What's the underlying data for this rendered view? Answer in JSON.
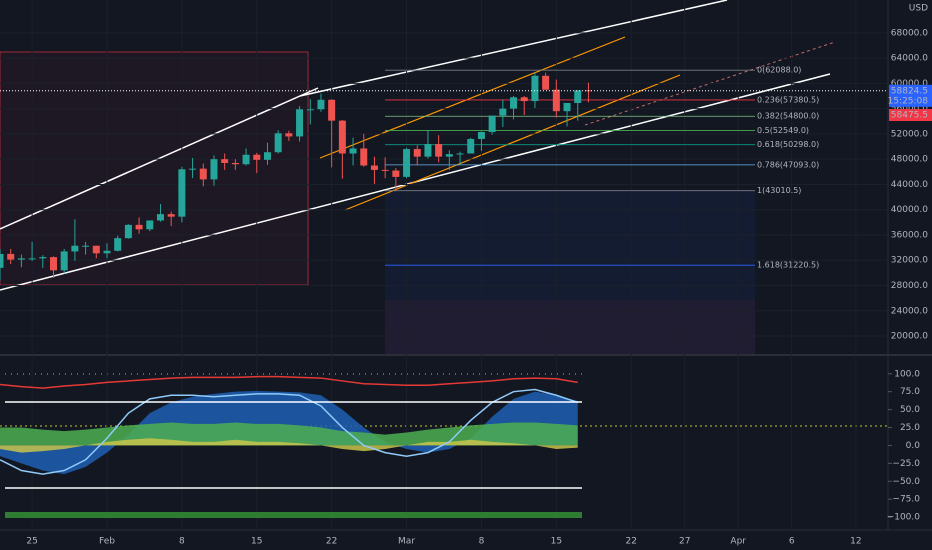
{
  "chart_data": [
    {
      "type": "candlestick",
      "currency": "USD",
      "x": [
        "01-22",
        "01-23",
        "01-24",
        "01-25",
        "01-26",
        "01-27",
        "01-28",
        "01-29",
        "01-30",
        "01-31",
        "02-01",
        "02-02",
        "02-03",
        "02-04",
        "02-05",
        "02-06",
        "02-07",
        "02-08",
        "02-09",
        "02-10",
        "02-11",
        "02-12",
        "02-13",
        "02-14",
        "02-15",
        "02-16",
        "02-17",
        "02-18",
        "02-19",
        "02-20",
        "02-21",
        "02-22",
        "02-23",
        "02-24",
        "02-25",
        "02-26",
        "02-27",
        "02-28",
        "03-01",
        "03-02",
        "03-03",
        "03-04",
        "03-05",
        "03-06",
        "03-07",
        "03-08",
        "03-09",
        "03-10",
        "03-11",
        "03-12",
        "03-13",
        "03-14",
        "03-15",
        "03-16",
        "03-17",
        "03-18"
      ],
      "open": [
        30800,
        33000,
        32100,
        32300,
        32300,
        32500,
        30400,
        33400,
        34300,
        34300,
        33100,
        33500,
        35500,
        37600,
        36900,
        38300,
        39300,
        38900,
        46400,
        46500,
        44800,
        48000,
        47400,
        47200,
        48700,
        47900,
        49100,
        52100,
        51600,
        55900,
        55900,
        57400,
        54100,
        48900,
        49700,
        47000,
        46300,
        46200,
        45200,
        49600,
        48400,
        50400,
        48400,
        48800,
        48900,
        51200,
        52300,
        54900,
        56000,
        57800,
        57200,
        61200,
        59000,
        55600,
        56900,
        58900
      ],
      "high": [
        33800,
        33800,
        32900,
        34900,
        32800,
        32600,
        33800,
        38500,
        34900,
        34300,
        34700,
        35900,
        37700,
        38800,
        38300,
        40900,
        39700,
        46800,
        48200,
        47300,
        48600,
        48900,
        48000,
        49700,
        49000,
        50600,
        52600,
        52500,
        56400,
        57500,
        58400,
        57500,
        54200,
        51400,
        52000,
        48400,
        48300,
        46600,
        49800,
        50200,
        52600,
        51800,
        49400,
        49200,
        51400,
        52400,
        54900,
        57400,
        58000,
        58000,
        61700,
        61700,
        60600,
        56900,
        58900,
        60100
      ],
      "low": [
        28800,
        31400,
        30900,
        31900,
        30800,
        29200,
        29900,
        31900,
        32900,
        32300,
        32300,
        33400,
        35400,
        36200,
        36600,
        38100,
        37400,
        38000,
        45000,
        43700,
        43800,
        46300,
        46300,
        47000,
        45800,
        47100,
        48900,
        50900,
        50800,
        53500,
        55500,
        46700,
        44900,
        47000,
        46800,
        44100,
        45000,
        43000,
        45000,
        47000,
        48100,
        47500,
        46300,
        47100,
        48900,
        49300,
        51900,
        53100,
        54300,
        55000,
        56100,
        59000,
        54600,
        53200,
        54100,
        57000
      ],
      "close": [
        33000,
        32100,
        32300,
        32300,
        32500,
        30400,
        33400,
        34300,
        34300,
        33100,
        33500,
        35500,
        37600,
        36900,
        38300,
        39300,
        38900,
        46400,
        46500,
        44800,
        48000,
        47400,
        47200,
        48700,
        47900,
        49100,
        52100,
        51600,
        55900,
        55900,
        57400,
        54100,
        48900,
        49700,
        47000,
        46300,
        46200,
        45200,
        49600,
        48400,
        50400,
        48400,
        48800,
        48900,
        51200,
        52300,
        54900,
        56000,
        57800,
        57200,
        61200,
        59000,
        55600,
        56900,
        58900,
        58824.5
      ],
      "up_color": "#26a69a",
      "down_color": "#ef5350",
      "ylim": [
        17000,
        73200
      ],
      "yticks": [
        {
          "value": 20000,
          "label": "20000.0"
        },
        {
          "value": 24000,
          "label": "24000.0"
        },
        {
          "value": 28000,
          "label": "28000.0"
        },
        {
          "value": 32000,
          "label": "32000.0"
        },
        {
          "value": 36000,
          "label": "36000.0"
        },
        {
          "value": 40000,
          "label": "40000.0"
        },
        {
          "value": 44000,
          "label": "44000.0"
        },
        {
          "value": 48000,
          "label": "48000.0"
        },
        {
          "value": 52000,
          "label": "52000.0"
        },
        {
          "value": 56000,
          "label": "56000.0"
        },
        {
          "value": 60000,
          "label": "60000.0"
        },
        {
          "value": 64000,
          "label": "64000.0"
        },
        {
          "value": 68000,
          "label": "68000.0"
        }
      ],
      "xlim": [
        "01-22",
        "04-15"
      ],
      "xticks": [
        {
          "value": "01-25",
          "label": "25"
        },
        {
          "value": "02-01",
          "label": "Feb"
        },
        {
          "value": "02-08",
          "label": "8"
        },
        {
          "value": "02-15",
          "label": "15"
        },
        {
          "value": "02-22",
          "label": "22"
        },
        {
          "value": "03-01",
          "label": "Mar"
        },
        {
          "value": "03-08",
          "label": "8"
        },
        {
          "value": "03-15",
          "label": "15"
        },
        {
          "value": "03-22",
          "label": "22"
        },
        {
          "value": "03-27",
          "label": "27"
        },
        {
          "value": "04-01",
          "label": "Apr"
        },
        {
          "value": "04-06",
          "label": "6"
        },
        {
          "value": "04-12",
          "label": "12"
        }
      ],
      "grid": true,
      "last_price": {
        "value": 58824.5,
        "label": "58824.5"
      },
      "countdown": "15:25:08",
      "prev_price": {
        "value": 58475.5,
        "label": "58475.5"
      },
      "fib_levels": [
        {
          "value": 62088,
          "label": "0(62088.0)",
          "color": "#787b86"
        },
        {
          "value": 57380.5,
          "label": "0.236(57380.5)",
          "color": "#f23645"
        },
        {
          "value": 54800,
          "label": "0.382(54800.0)",
          "color": "#81c784"
        },
        {
          "value": 52549,
          "label": "0.5(52549.0)",
          "color": "#4caf50"
        },
        {
          "value": 50298,
          "label": "0.618(50298.0)",
          "color": "#089981"
        },
        {
          "value": 47093,
          "label": "0.786(47093.0)",
          "color": "#64b5f6"
        },
        {
          "value": 43010.5,
          "label": "1(43010.5)",
          "color": "#787b86"
        },
        {
          "value": 31220.5,
          "label": "1.618(31220.5)",
          "color": "#2962ff"
        }
      ]
    },
    {
      "type": "oscillator",
      "x": [
        "01-22",
        "01-24",
        "01-26",
        "01-28",
        "01-30",
        "02-01",
        "02-03",
        "02-05",
        "02-07",
        "02-09",
        "02-11",
        "02-13",
        "02-15",
        "02-17",
        "02-19",
        "02-21",
        "02-23",
        "02-25",
        "02-27",
        "03-01",
        "03-03",
        "03-05",
        "03-07",
        "03-09",
        "03-11",
        "03-13",
        "03-15",
        "03-17"
      ],
      "ylim": [
        -118,
        122
      ],
      "yticks": [
        {
          "value": 100,
          "label": "100.0"
        },
        {
          "value": 75,
          "label": "75.0"
        },
        {
          "value": 50,
          "label": "50.0"
        },
        {
          "value": 25,
          "label": "25.0"
        },
        {
          "value": 0,
          "label": "0.0"
        },
        {
          "value": -25,
          "label": "−25.0"
        },
        {
          "value": -50,
          "label": "−50.0"
        },
        {
          "value": -75,
          "label": "−75.0"
        },
        {
          "value": -100,
          "label": "−100.0"
        }
      ],
      "series": [
        {
          "style": "area",
          "color": "#1e5fb4",
          "values": [
            -15,
            -25,
            -35,
            -40,
            -30,
            -10,
            15,
            45,
            60,
            68,
            72,
            75,
            76,
            75,
            74,
            70,
            50,
            25,
            5,
            -5,
            -10,
            -5,
            10,
            40,
            65,
            75,
            70,
            62
          ]
        },
        {
          "style": "area",
          "color": "#4caf50",
          "values": [
            25,
            25,
            22,
            20,
            22,
            25,
            28,
            30,
            32,
            30,
            30,
            32,
            30,
            30,
            28,
            25,
            20,
            18,
            15,
            18,
            22,
            25,
            28,
            30,
            32,
            32,
            30,
            28
          ]
        },
        {
          "style": "area",
          "color": "#c9c44a",
          "values": [
            -5,
            -10,
            -8,
            -5,
            0,
            5,
            8,
            10,
            8,
            5,
            5,
            8,
            5,
            5,
            3,
            0,
            -5,
            -8,
            -5,
            0,
            5,
            5,
            8,
            5,
            3,
            0,
            -5,
            -3
          ]
        },
        {
          "style": "line",
          "color": "#90caf9",
          "values": [
            -20,
            -35,
            -40,
            -35,
            -20,
            10,
            45,
            65,
            70,
            70,
            68,
            70,
            72,
            72,
            70,
            55,
            25,
            0,
            -10,
            -15,
            -10,
            5,
            35,
            60,
            75,
            78,
            70,
            60
          ]
        },
        {
          "style": "line",
          "color": "#e53935",
          "values": [
            85,
            82,
            80,
            83,
            85,
            88,
            90,
            92,
            94,
            95,
            95,
            95,
            96,
            96,
            95,
            94,
            90,
            86,
            85,
            84,
            84,
            86,
            88,
            90,
            93,
            94,
            93,
            88
          ]
        }
      ]
    }
  ]
}
